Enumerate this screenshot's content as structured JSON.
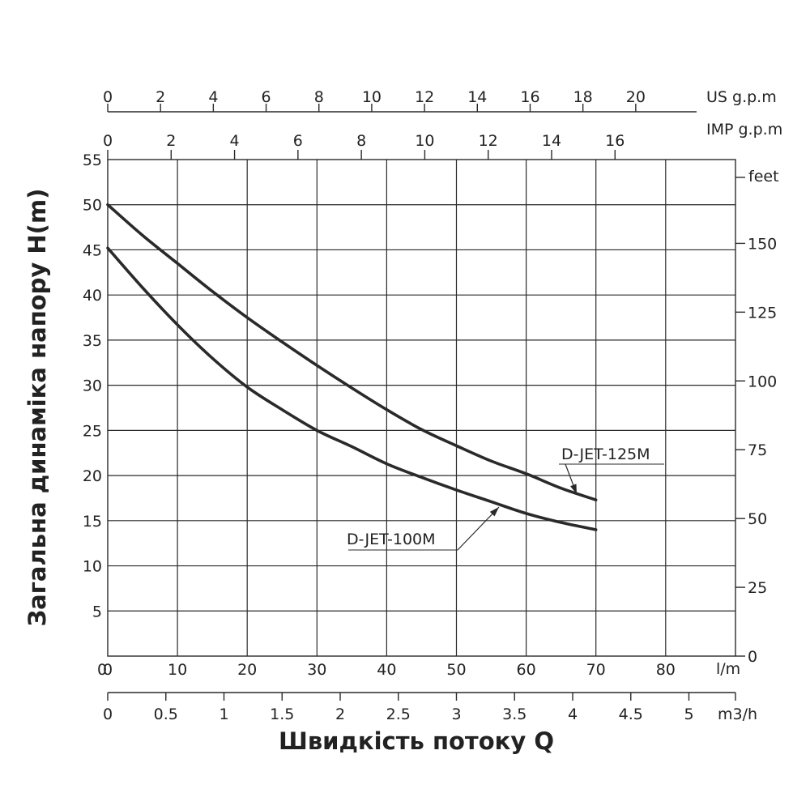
{
  "chart_data": {
    "type": "line",
    "xlabel": "Швидкість потоку Q",
    "ylabel": "Загальна динаміка напору H(m)",
    "xunit": "l/m",
    "xlim": [
      0,
      90
    ],
    "ylim": [
      0,
      55
    ],
    "grid": true,
    "x_ticks": [
      0,
      10,
      20,
      30,
      40,
      50,
      60,
      70,
      80
    ],
    "y_ticks": [
      5,
      10,
      15,
      20,
      25,
      30,
      35,
      40,
      45,
      50,
      55
    ],
    "y_origin_label": "0",
    "secondary_axes": {
      "us_gpm": {
        "unit": "US g.p.m",
        "ticks": [
          0,
          2,
          4,
          6,
          8,
          10,
          12,
          14,
          16,
          18,
          20
        ]
      },
      "imp_gpm": {
        "unit": "IMP g.p.m",
        "ticks": [
          0,
          2,
          4,
          6,
          8,
          10,
          12,
          14,
          16
        ]
      },
      "feet": {
        "unit": "feet",
        "ticks": [
          0,
          25,
          50,
          75,
          100,
          125,
          150
        ]
      },
      "m3h": {
        "unit": "m3/h",
        "ticks": [
          "0",
          "0.5",
          "1",
          "1.5",
          "2",
          "2.5",
          "3",
          "3.5",
          "4",
          "4.5",
          "5"
        ]
      }
    },
    "series": [
      {
        "name": "D-JET-125M",
        "color": "#2a2a2a",
        "x": [
          0,
          5,
          10,
          15,
          20,
          25,
          30,
          35,
          40,
          45,
          50,
          55,
          60,
          65,
          70
        ],
        "y": [
          50,
          46.6,
          43.5,
          40.4,
          37.5,
          34.8,
          32.2,
          29.7,
          27.3,
          25.1,
          23.3,
          21.6,
          20.2,
          18.6,
          17.3
        ]
      },
      {
        "name": "D-JET-100M",
        "color": "#2a2a2a",
        "x": [
          0,
          5,
          10,
          15,
          20,
          25,
          30,
          35,
          40,
          45,
          50,
          55,
          60,
          65,
          70
        ],
        "y": [
          45.2,
          40.8,
          36.7,
          33,
          29.8,
          27.3,
          25,
          23.2,
          21.3,
          19.8,
          18.4,
          17.1,
          15.8,
          14.8,
          14
        ]
      }
    ]
  }
}
